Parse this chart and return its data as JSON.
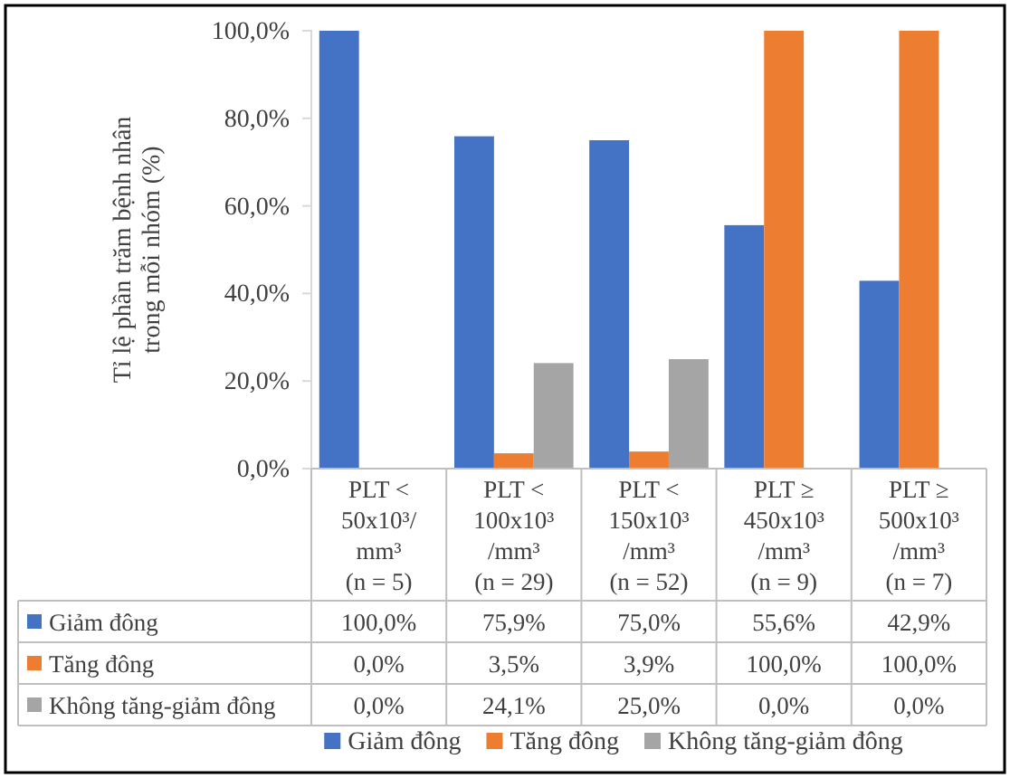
{
  "chart_data": {
    "type": "bar",
    "ylabel": "Tỉ lệ phần trăm bệnh nhân\ntrong mỗi nhóm (%)",
    "categories": [
      "PLT <\n50x10³/\nmm³\n(n = 5)",
      "PLT <\n100x10³\n/mm³\n(n = 29)",
      "PLT <\n150x10³\n/mm³\n(n = 52)",
      "PLT ≥\n450x10³\n/mm³\n(n = 9)",
      "PLT ≥\n500x10³\n/mm³\n(n = 7)"
    ],
    "series": [
      {
        "name": "Giảm đông",
        "color": "#4472c4",
        "values": [
          100,
          75.9,
          75,
          55.6,
          42.9
        ],
        "value_labels": [
          "100,0%",
          "75,9%",
          "75,0%",
          "55,6%",
          "42,9%"
        ]
      },
      {
        "name": "Tăng đông",
        "color": "#ed7d31",
        "values": [
          0,
          3.5,
          3.9,
          100,
          100
        ],
        "value_labels": [
          "0,0%",
          "3,5%",
          "3,9%",
          "100,0%",
          "100,0%"
        ]
      },
      {
        "name": "Không tăng-giảm đông",
        "color": "#a5a5a5",
        "values": [
          0,
          24.1,
          25,
          0,
          0
        ],
        "value_labels": [
          "0,0%",
          "24,1%",
          "25,0%",
          "0,0%",
          "0,0%"
        ]
      }
    ],
    "ylim": [
      0,
      100
    ],
    "yticks": [
      {
        "value": 0,
        "label": "0,0%"
      },
      {
        "value": 20,
        "label": "20,0%"
      },
      {
        "value": 40,
        "label": "40,0%"
      },
      {
        "value": 60,
        "label": "60,0%"
      },
      {
        "value": 80,
        "label": "80,0%"
      },
      {
        "value": 100,
        "label": "100,0%"
      }
    ],
    "legend": "bottom"
  }
}
